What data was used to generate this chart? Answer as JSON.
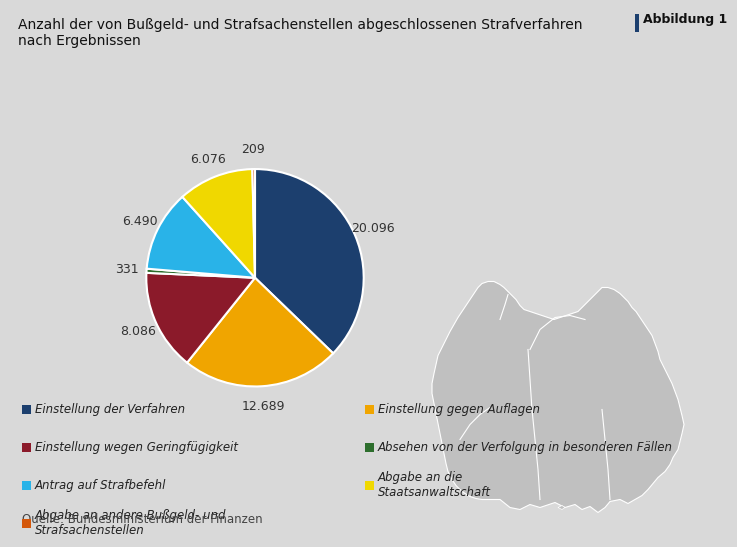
{
  "title": "Anzahl der von Bußgeld- und Strafsachenstellen abgeschlossenen Strafverfahren\nnach Ergebnissen",
  "abbildung": "Abbildung 1",
  "source": "Quelle: Bundesministerium der Finanzen",
  "values": [
    20096,
    12689,
    8086,
    331,
    6490,
    6076,
    209
  ],
  "labels": [
    "20.096",
    "12.689",
    "8.086",
    "331",
    "6.490",
    "6.076",
    "209"
  ],
  "colors": [
    "#1c3f6e",
    "#f0a500",
    "#8b1a2a",
    "#2d6e2d",
    "#29b3e8",
    "#f0d800",
    "#d4570a"
  ],
  "legend_labels_col1": [
    "Einstellung der Verfahren",
    "Einstellung wegen Geringfügigkeit",
    "Antrag auf Strafbefehl",
    "Abgabe an andere Bußgeld- und\nStrafsachenstellen"
  ],
  "legend_labels_col2": [
    "Einstellung gegen Auflagen",
    "Absehen von der Verfolgung in besonderen Fällen",
    "Abgabe an die\nStaatsanwaltschaft"
  ],
  "legend_colors_col1_idx": [
    0,
    2,
    4,
    6
  ],
  "legend_colors_col2_idx": [
    1,
    3,
    5
  ],
  "bg_color": "#d9d9d9",
  "map_color": "#c0c0c0",
  "map_border_color": "#ffffff",
  "title_fontsize": 10,
  "label_fontsize": 9,
  "legend_fontsize": 8.5,
  "abbildung_fontsize": 9
}
